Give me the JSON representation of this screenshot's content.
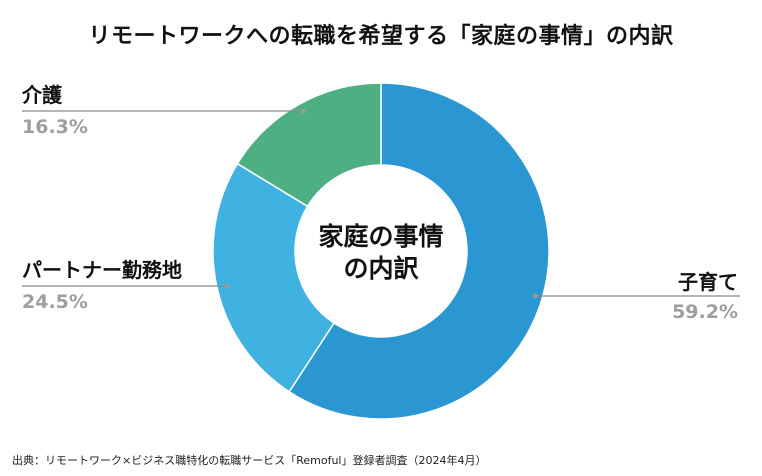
{
  "title": "リモートワークへの転職を希望する「家庭の事情」の内訳",
  "center_label": [
    "家庭の事情",
    "の内訳"
  ],
  "source": "出典：リモートワーク×ビジネス職特化の転職サービス「Remoful」登録者調査（2024年4月）",
  "colors": {
    "子育て": "#2b97d2",
    "パートナー勤務地": "#3fb2e2",
    "介護": "#4daf82",
    "leader": "#8a8a8a",
    "percent_text": "#9e9e9e"
  },
  "chart_data": {
    "type": "pie",
    "variant": "donut",
    "title": "リモートワークへの転職を希望する「家庭の事情」の内訳",
    "slices": [
      {
        "label": "子育て",
        "value": 59.2,
        "value_label": "59.2%"
      },
      {
        "label": "パートナー勤務地",
        "value": 24.5,
        "value_label": "24.5%"
      },
      {
        "label": "介護",
        "value": 16.3,
        "value_label": "16.3%"
      }
    ],
    "start": "top",
    "direction": "clockwise",
    "legend": "none"
  }
}
